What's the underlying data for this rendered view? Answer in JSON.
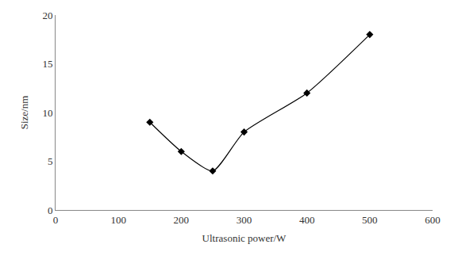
{
  "chart_data": {
    "type": "line",
    "x_label": "Ultrasonic power/W",
    "y_label": "Size/nm",
    "x": [
      150,
      200,
      250,
      300,
      400,
      500
    ],
    "values": [
      9,
      6,
      4,
      8,
      12,
      18
    ],
    "color": "#000000",
    "marker": "diamond",
    "line_style": "solid",
    "xlim": [
      0,
      600
    ],
    "xticks": [
      0,
      100,
      200,
      300,
      400,
      500,
      600
    ],
    "ylim": [
      0,
      20
    ],
    "yticks": [
      0,
      5,
      10,
      15,
      20
    ],
    "grid": false
  }
}
